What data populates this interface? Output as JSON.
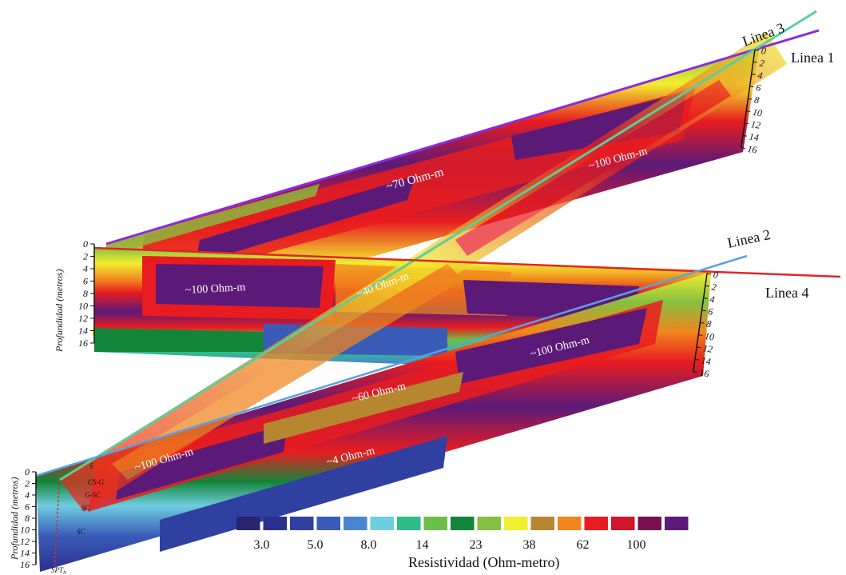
{
  "lines": {
    "linea1": "Linea 1",
    "linea2": "Linea 2",
    "linea3": "Linea 3",
    "linea4": "Linea 4"
  },
  "annotations": {
    "a70": "~70 Ohm-m",
    "a100_top": "~100 Ohm-m",
    "a100_left": "~100 Ohm-m",
    "a40": "~40 Ohm-m",
    "a100_right": "~100 Ohm-m",
    "a60": "~60 Ohm-m",
    "a100_bottom": "~100 Ohm-m",
    "a4": "~4 Ohm-m"
  },
  "depth_axis": {
    "title": "Profundidad (metros)",
    "ticks": [
      "0",
      "2",
      "4",
      "6",
      "8",
      "10",
      "12",
      "14",
      "16"
    ]
  },
  "borehole": {
    "labels": [
      "S",
      "CS-G",
      "G-SC",
      "SC",
      "SC"
    ],
    "name": "SPT",
    "name_sub": "N"
  },
  "legend": {
    "title": "Resistividad (Ohm-metro)",
    "colors": [
      "#28246e",
      "#2b2f8f",
      "#3040a0",
      "#3a5cb8",
      "#4a86d0",
      "#6fcde0",
      "#2dbd8a",
      "#6cc04a",
      "#13853a",
      "#86c040",
      "#f2ee30",
      "#b78630",
      "#f0861e",
      "#e81c20",
      "#d0162a",
      "#7a1050",
      "#5c1a78"
    ],
    "labels": [
      "3.0",
      "5.0",
      "8.0",
      "14",
      "23",
      "38",
      "62",
      "100"
    ]
  }
}
